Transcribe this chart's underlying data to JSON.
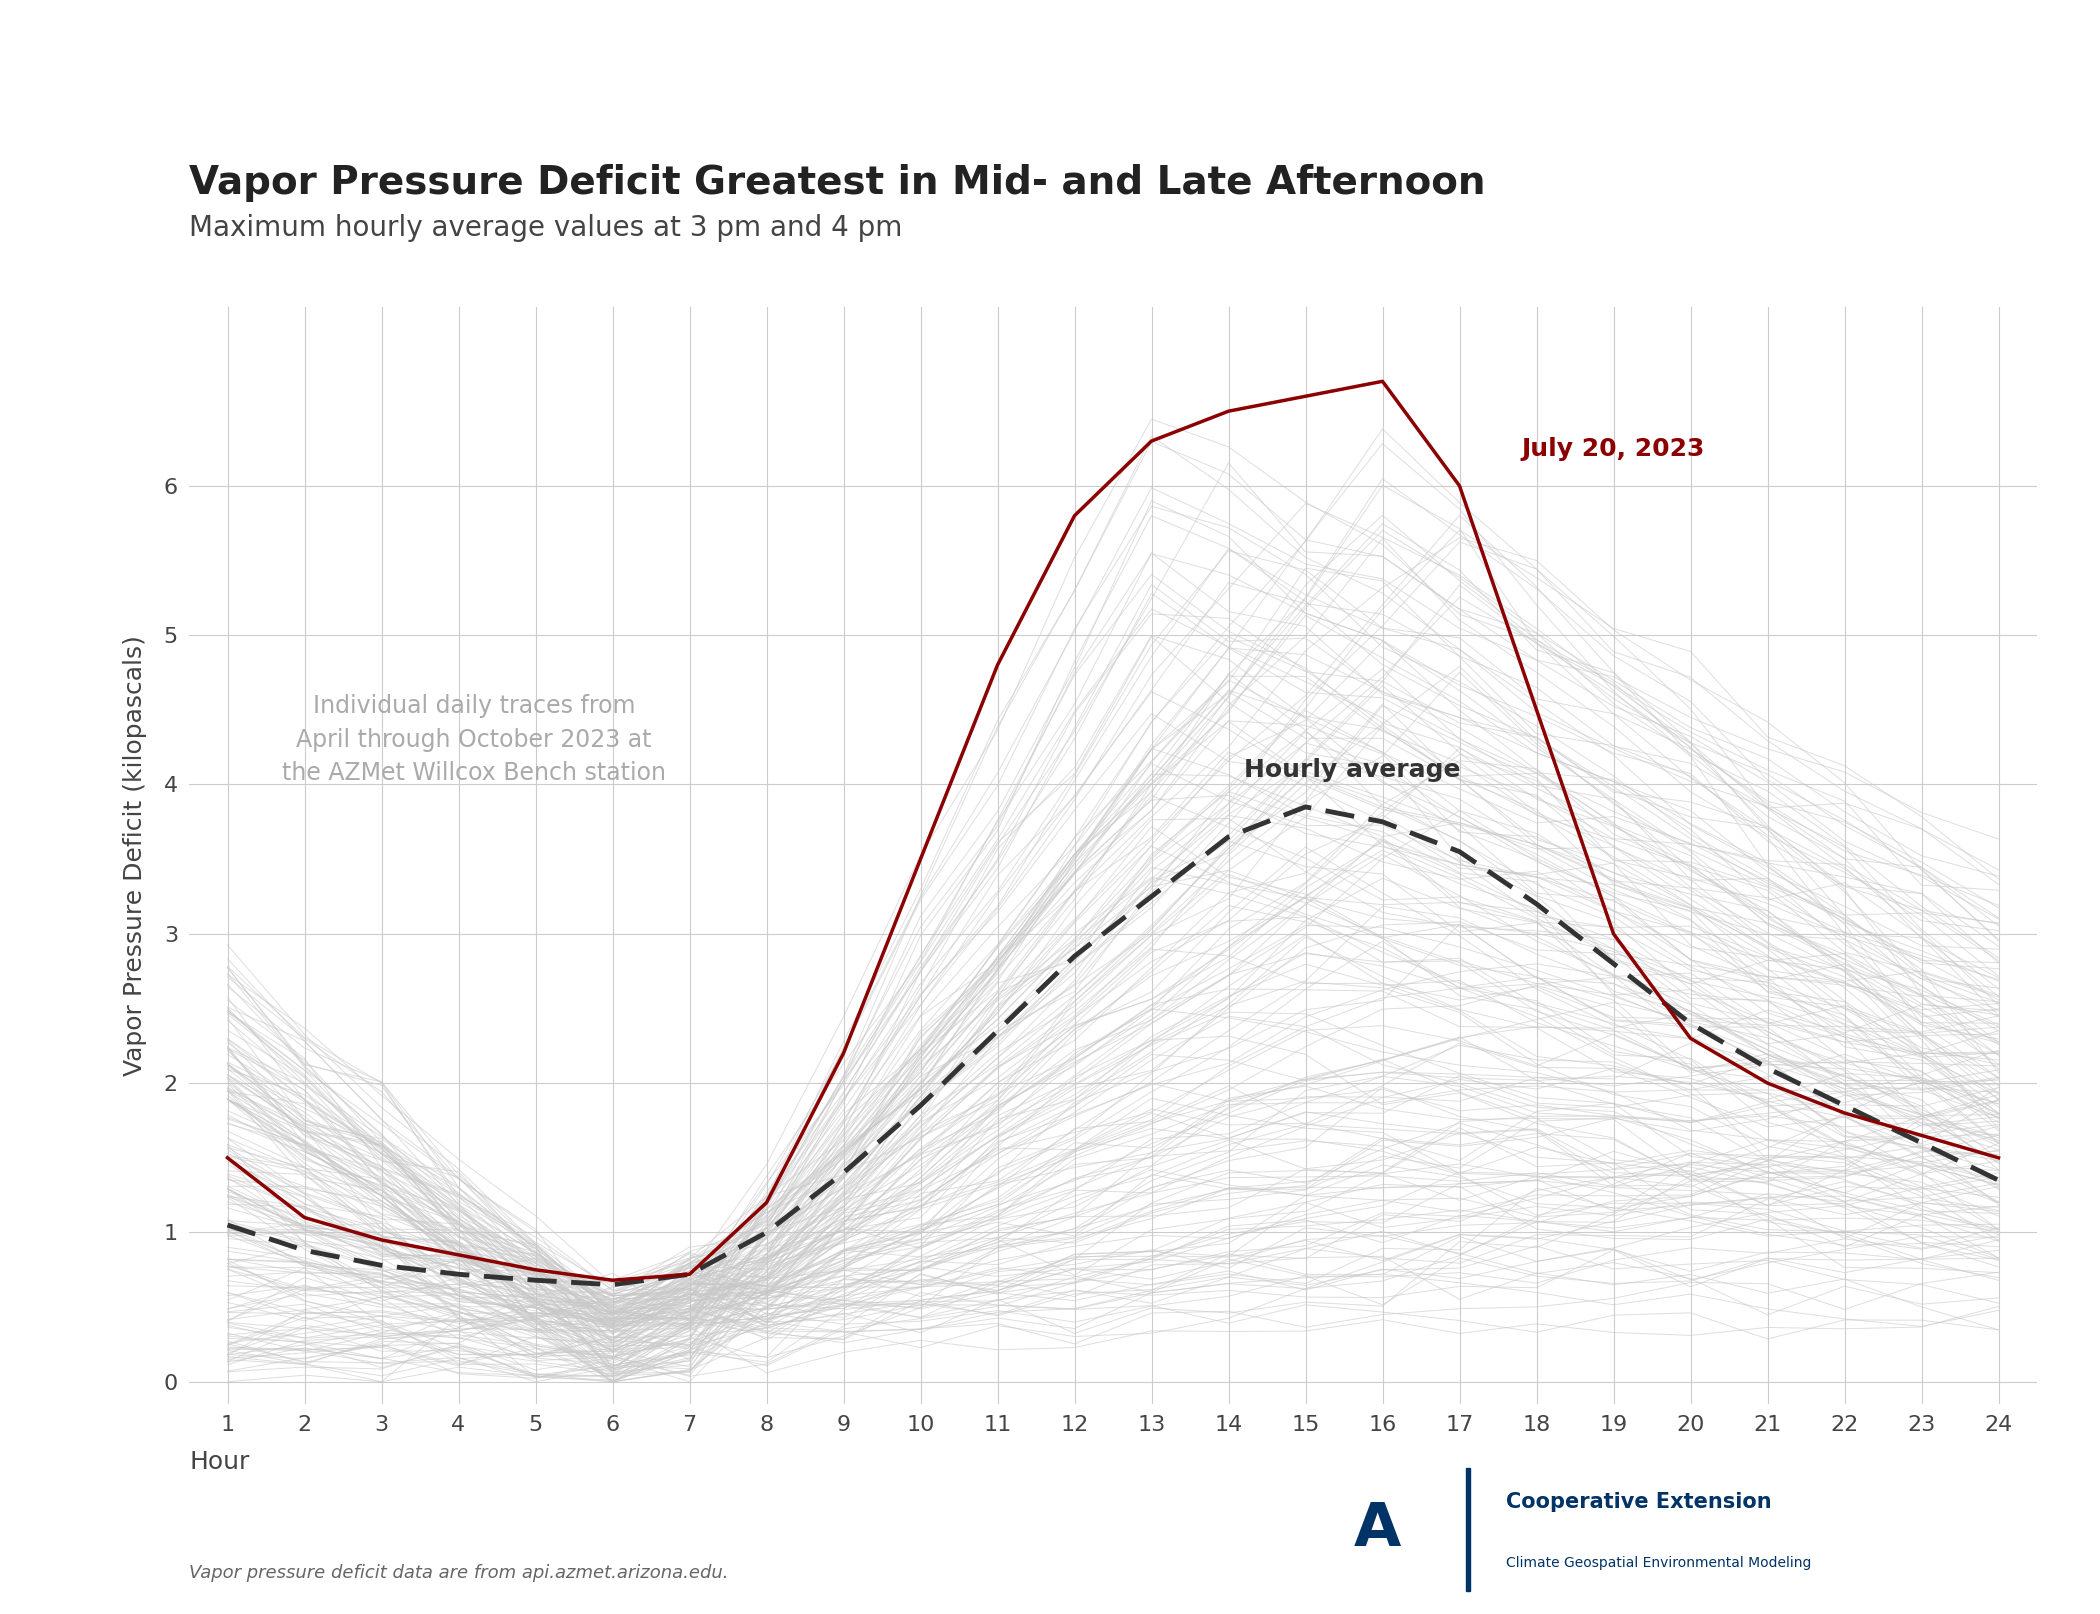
{
  "title": "Vapor Pressure Deficit Greatest in Mid- and Late Afternoon",
  "subtitle": "Maximum hourly average values at 3 pm and 4 pm",
  "xlabel": "Hour",
  "ylabel": "Vapor Pressure Deficit (kilopascals)",
  "footnote": "Vapor pressure deficit data are from api.azmet.arizona.edu.",
  "annotation_traces": "Individual daily traces from\nApril through October 2023 at\nthe AZMet Willcox Bench station",
  "annotation_avg": "Hourly average",
  "highlight_label": "July 20, 2023",
  "title_fontsize": 28,
  "subtitle_fontsize": 20,
  "label_fontsize": 18,
  "tick_fontsize": 16,
  "annotation_fontsize": 17,
  "background_color": "#ffffff",
  "plot_bg_color": "#ffffff",
  "grid_color": "#cccccc",
  "trace_color": "#c8c8c8",
  "trace_alpha": 0.6,
  "trace_lw": 0.7,
  "avg_color": "#333333",
  "avg_lw": 3.5,
  "highlight_color": "#8b0000",
  "highlight_lw": 2.5,
  "title_color": "#222222",
  "subtitle_color": "#444444",
  "annotation_color": "#aaaaaa",
  "ylabel_color": "#444444",
  "xlabel_color": "#444444",
  "ua_blue": "#003366",
  "ylim": [
    -0.15,
    7.2
  ],
  "hours": [
    1,
    2,
    3,
    4,
    5,
    6,
    7,
    8,
    9,
    10,
    11,
    12,
    13,
    14,
    15,
    16,
    17,
    18,
    19,
    20,
    21,
    22,
    23,
    24
  ],
  "hourly_avg": [
    1.05,
    0.88,
    0.78,
    0.72,
    0.68,
    0.65,
    0.72,
    1.0,
    1.4,
    1.85,
    2.35,
    2.85,
    3.25,
    3.65,
    3.85,
    3.75,
    3.55,
    3.2,
    2.8,
    2.4,
    2.1,
    1.85,
    1.6,
    1.35
  ],
  "highlight_day": [
    1.5,
    1.1,
    0.95,
    0.85,
    0.75,
    0.68,
    0.72,
    1.2,
    2.2,
    3.5,
    4.8,
    5.8,
    6.3,
    6.5,
    6.6,
    6.7,
    6.0,
    4.5,
    3.0,
    2.3,
    2.0,
    1.8,
    1.65,
    1.5
  ],
  "seed": 42,
  "n_traces": 180
}
